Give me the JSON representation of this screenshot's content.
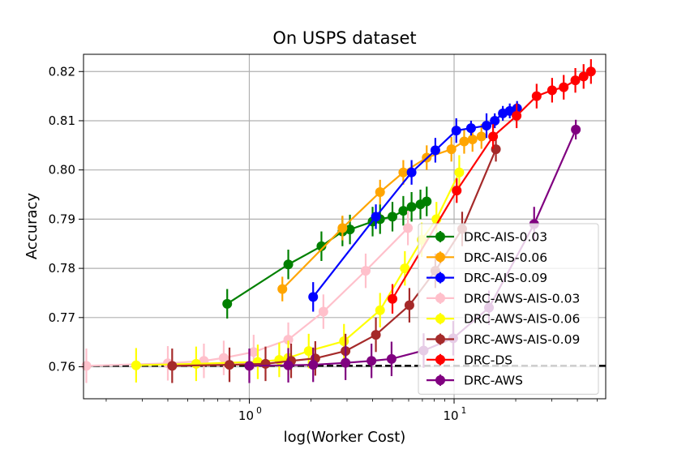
{
  "chart_data": {
    "type": "line",
    "title": "On USPS dataset",
    "xlabel": "log(Worker Cost)",
    "ylabel": "Accuracy",
    "xscale": "log",
    "xlim": [
      0.155,
      55
    ],
    "ylim": [
      0.7535,
      0.8235
    ],
    "xticks": [
      {
        "value": 1,
        "base": "10",
        "exp": "0"
      },
      {
        "value": 10,
        "base": "10",
        "exp": "1"
      }
    ],
    "yticks": [
      0.76,
      0.77,
      0.78,
      0.79,
      0.8,
      0.81,
      0.82
    ],
    "ytick_labels": [
      "0.76",
      "0.77",
      "0.78",
      "0.79",
      "0.80",
      "0.81",
      "0.82"
    ],
    "grid": true,
    "legend_position": "lower-right",
    "baseline": {
      "y": 0.7602,
      "style": "dashed",
      "color": "#000000"
    },
    "series": [
      {
        "name": "DRC-AIS-0.03",
        "color": "#008000",
        "x": [
          0.78,
          1.55,
          2.25,
          2.85,
          3.1,
          4.0,
          4.35,
          5.0,
          5.65,
          6.2,
          6.85,
          7.35
        ],
        "y": [
          0.7728,
          0.7808,
          0.7845,
          0.7875,
          0.7879,
          0.7895,
          0.79,
          0.7905,
          0.7917,
          0.7925,
          0.793,
          0.7936
        ],
        "err": [
          0.003,
          0.003,
          0.003,
          0.003,
          0.003,
          0.003,
          0.003,
          0.003,
          0.003,
          0.003,
          0.003,
          0.003
        ]
      },
      {
        "name": "DRC-AIS-0.06",
        "color": "#ffa500",
        "x": [
          1.45,
          2.85,
          4.35,
          5.65,
          7.35,
          9.7,
          11.2,
          12.3,
          13.6
        ],
        "y": [
          0.7758,
          0.7882,
          0.7955,
          0.7995,
          0.8025,
          0.8042,
          0.8058,
          0.8062,
          0.8068
        ],
        "err": [
          0.0025,
          0.0025,
          0.0025,
          0.0025,
          0.0025,
          0.0025,
          0.0025,
          0.0025,
          0.0025
        ]
      },
      {
        "name": "DRC-AIS-0.09",
        "color": "#0000ff",
        "x": [
          2.05,
          4.15,
          6.2,
          8.1,
          10.25,
          12.1,
          14.4,
          15.8,
          17.3,
          18.7,
          20.3
        ],
        "y": [
          0.7742,
          0.7905,
          0.7995,
          0.804,
          0.808,
          0.8085,
          0.809,
          0.81,
          0.8115,
          0.812,
          0.8125
        ],
        "err": [
          0.003,
          0.0025,
          0.0025,
          0.0025,
          0.0025,
          0.0015,
          0.0025,
          0.0015,
          0.0015,
          0.0015,
          0.0015
        ]
      },
      {
        "name": "DRC-AWS-AIS-0.03",
        "color": "#ffc0cb",
        "x": [
          0.16,
          0.4,
          0.6,
          0.75,
          1.05,
          1.55,
          2.3,
          3.7,
          5.95
        ],
        "y": [
          0.7602,
          0.7607,
          0.7612,
          0.7618,
          0.763,
          0.7655,
          0.7712,
          0.7795,
          0.7882
        ],
        "err": [
          0.0035,
          0.0035,
          0.0035,
          0.0035,
          0.0035,
          0.0035,
          0.0035,
          0.0035,
          0.0035
        ]
      },
      {
        "name": "DRC-AWS-AIS-0.06",
        "color": "#ffff00",
        "x": [
          0.28,
          0.55,
          1.1,
          1.4,
          1.55,
          1.95,
          2.9,
          4.35,
          5.75,
          6.95,
          8.2,
          10.6
        ],
        "y": [
          0.7603,
          0.7606,
          0.761,
          0.7614,
          0.7618,
          0.7632,
          0.7652,
          0.7715,
          0.78,
          0.7858,
          0.79,
          0.7995
        ],
        "err": [
          0.0035,
          0.0035,
          0.0035,
          0.0035,
          0.0035,
          0.0035,
          0.0035,
          0.0035,
          0.0035,
          0.0035,
          0.0035,
          0.0035
        ]
      },
      {
        "name": "DRC-AWS-AIS-0.09",
        "color": "#a52a2a",
        "x": [
          0.42,
          0.8,
          1.2,
          1.6,
          2.1,
          2.95,
          4.15,
          6.05,
          8.1,
          10.95,
          16.0
        ],
        "y": [
          0.7602,
          0.7604,
          0.7606,
          0.7612,
          0.7617,
          0.7632,
          0.7665,
          0.7725,
          0.7795,
          0.788,
          0.8042
        ],
        "err": [
          0.0035,
          0.0035,
          0.0035,
          0.0035,
          0.0035,
          0.0035,
          0.0035,
          0.0035,
          0.0035,
          0.0035,
          0.0025
        ]
      },
      {
        "name": "DRC-DS",
        "color": "#ff0000",
        "x": [
          5.0,
          10.3,
          15.5,
          20.2,
          25.3,
          30.1,
          34.3,
          39.1,
          42.9,
          46.6
        ],
        "y": [
          0.7738,
          0.7958,
          0.8068,
          0.811,
          0.815,
          0.8162,
          0.8168,
          0.8182,
          0.819,
          0.82
        ],
        "err": [
          0.003,
          0.0025,
          0.0025,
          0.0025,
          0.0025,
          0.0025,
          0.0025,
          0.0025,
          0.0025,
          0.0025
        ]
      },
      {
        "name": "DRC-AWS",
        "color": "#800080",
        "x": [
          1.0,
          1.55,
          2.05,
          2.95,
          3.95,
          4.95,
          7.1,
          9.9,
          14.8,
          24.6,
          39.3
        ],
        "y": [
          0.7602,
          0.7603,
          0.7604,
          0.7608,
          0.7612,
          0.7616,
          0.7633,
          0.7658,
          0.772,
          0.789,
          0.8082
        ],
        "err": [
          0.0035,
          0.0035,
          0.0035,
          0.0035,
          0.0035,
          0.0035,
          0.0035,
          0.0035,
          0.0035,
          0.0035,
          0.002
        ]
      }
    ]
  }
}
